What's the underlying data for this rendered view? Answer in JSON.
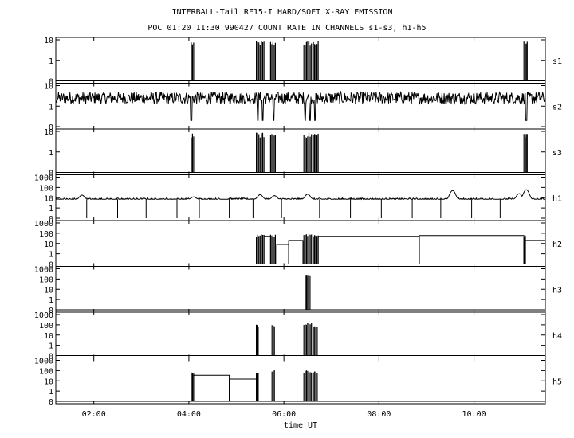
{
  "title_line1": "INTERBALL-Tail RF15-I HARD/SOFT X-RAY EMISSION",
  "title_line2": "POC 01:20 11:30 990427  COUNT RATE IN CHANNELS s1-s3, h1-h5",
  "xlabel": "time UT",
  "colors": {
    "line": "#000000",
    "background": "#ffffff"
  },
  "chart_data": {
    "type": "line",
    "x_range_hours": [
      1.2,
      11.5
    ],
    "x_ticks": [
      {
        "hour": 2,
        "label": "02:00"
      },
      {
        "hour": 4,
        "label": "04:00"
      },
      {
        "hour": 6,
        "label": "06:00"
      },
      {
        "hour": 8,
        "label": "08:00"
      },
      {
        "hour": 10,
        "label": "10:00"
      }
    ],
    "panels": [
      {
        "name": "s1",
        "ymax_decades": 1,
        "ytick_labels": [
          "0",
          "1",
          "10"
        ],
        "baseline": 0,
        "events": [
          {
            "x": [
              4.05,
              4.1
            ],
            "level": 8
          },
          {
            "x": [
              5.42,
              5.58
            ],
            "level": 8
          },
          {
            "x": [
              5.72,
              5.82
            ],
            "level": 8
          },
          {
            "x": [
              6.42,
              6.58
            ],
            "level": 8
          },
          {
            "x": [
              6.62,
              6.72
            ],
            "level": 8
          },
          {
            "x": [
              11.05,
              11.12
            ],
            "level": 8
          }
        ]
      },
      {
        "name": "s2",
        "ymax_decades": 1,
        "ytick_labels": [
          "0",
          "1",
          "10"
        ],
        "baseline": 2.5,
        "noise": 0.6,
        "dips": [
          4.05,
          5.45,
          5.55,
          5.78,
          6.45,
          6.55,
          6.65,
          11.1
        ]
      },
      {
        "name": "s3",
        "ymax_decades": 1,
        "ytick_labels": [
          "0",
          "1",
          "10"
        ],
        "baseline": 0,
        "events": [
          {
            "x": [
              4.05,
              4.1
            ],
            "level": 8
          },
          {
            "x": [
              5.42,
              5.58
            ],
            "level": 8
          },
          {
            "x": [
              5.72,
              5.82
            ],
            "level": 8
          },
          {
            "x": [
              6.42,
              6.58
            ],
            "level": 8
          },
          {
            "x": [
              6.62,
              6.72
            ],
            "level": 8
          },
          {
            "x": [
              11.05,
              11.12
            ],
            "level": 8
          }
        ]
      },
      {
        "name": "h1",
        "ymax_decades": 3,
        "ytick_labels": [
          "0",
          "1",
          "10",
          "100",
          "1000"
        ],
        "baseline": 7,
        "noise": 0.25,
        "bumps": [
          {
            "x": 1.75,
            "peak": 18
          },
          {
            "x": 4.1,
            "peak": 12
          },
          {
            "x": 5.5,
            "peak": 20
          },
          {
            "x": 5.8,
            "peak": 16
          },
          {
            "x": 6.5,
            "peak": 22
          },
          {
            "x": 9.55,
            "peak": 50
          },
          {
            "x": 10.95,
            "peak": 25
          },
          {
            "x": 11.1,
            "peak": 60
          }
        ],
        "dropouts": [
          1.85,
          2.5,
          3.1,
          3.75,
          4.22,
          4.85,
          5.35,
          5.95,
          6.75,
          7.4,
          8.05,
          8.7,
          9.3,
          9.95,
          10.55
        ]
      },
      {
        "name": "h2",
        "ymax_decades": 3,
        "ytick_labels": [
          "0",
          "1",
          "10",
          "100",
          "1000"
        ],
        "steps": [
          {
            "x": [
              5.58,
              5.72
            ],
            "level": 50
          },
          {
            "x": [
              5.85,
              6.1
            ],
            "level": 8
          },
          {
            "x": [
              6.1,
              6.4
            ],
            "level": 20
          },
          {
            "x": [
              6.72,
              8.85
            ],
            "level": 50
          },
          {
            "x": [
              8.85,
              11.05
            ],
            "level": 60
          },
          {
            "x": [
              11.05,
              11.5
            ],
            "level": 20
          }
        ],
        "events": [
          {
            "x": [
              5.42,
              5.58
            ],
            "level": 70
          },
          {
            "x": [
              5.72,
              5.82
            ],
            "level": 70
          },
          {
            "x": [
              6.42,
              6.58
            ],
            "level": 90
          },
          {
            "x": [
              6.62,
              6.72
            ],
            "level": 70
          },
          {
            "x": [
              11.05,
              11.08
            ],
            "level": 60
          }
        ]
      },
      {
        "name": "h3",
        "ymax_decades": 3,
        "ytick_labels": [
          "0",
          "1",
          "10",
          "100",
          "1000"
        ],
        "events": [
          {
            "x": [
              6.45,
              6.55
            ],
            "level": 300
          }
        ]
      },
      {
        "name": "h4",
        "ymax_decades": 3,
        "ytick_labels": [
          "0",
          "1",
          "10",
          "100",
          "1000"
        ],
        "events": [
          {
            "x": [
              5.42,
              5.46
            ],
            "level": 100
          },
          {
            "x": [
              5.75,
              5.8
            ],
            "level": 100
          },
          {
            "x": [
              6.42,
              6.58
            ],
            "level": 150
          },
          {
            "x": [
              6.62,
              6.7
            ],
            "level": 80
          }
        ]
      },
      {
        "name": "h5",
        "ymax_decades": 3,
        "ytick_labels": [
          "0",
          "1",
          "10",
          "100",
          "1000"
        ],
        "steps": [
          {
            "x": [
              4.08,
              4.85
            ],
            "level": 35
          },
          {
            "x": [
              4.85,
              5.42
            ],
            "level": 15
          }
        ],
        "events": [
          {
            "x": [
              4.05,
              4.1
            ],
            "level": 60
          },
          {
            "x": [
              5.42,
              5.46
            ],
            "level": 80
          },
          {
            "x": [
              5.75,
              5.8
            ],
            "level": 100
          },
          {
            "x": [
              6.42,
              6.58
            ],
            "level": 100
          },
          {
            "x": [
              6.62,
              6.7
            ],
            "level": 80
          }
        ]
      }
    ]
  }
}
